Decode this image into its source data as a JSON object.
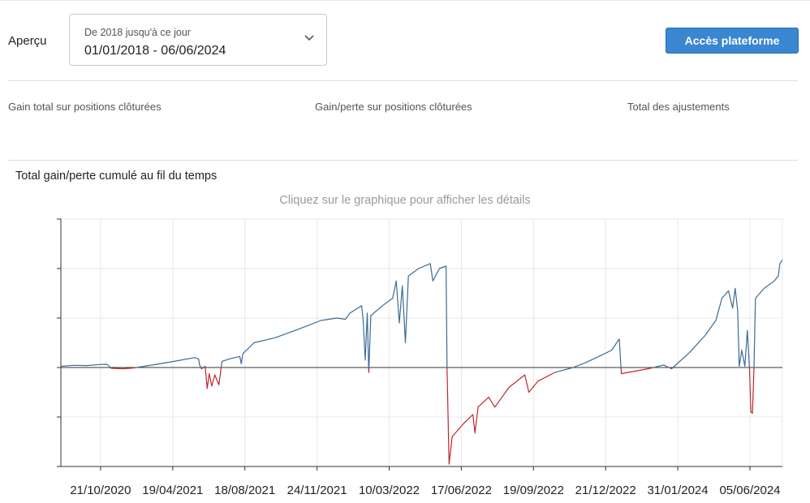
{
  "header": {
    "overview_label": "Aperçu",
    "range_caption": "De 2018 jusqu'à ce jour",
    "range_value": "01/01/2018 - 06/06/2024",
    "platform_button": "Accès plateforme",
    "accent_color": "#3b86d0"
  },
  "kpis": [
    {
      "label": "Gain total sur positions clôturées"
    },
    {
      "label": "Gain/perte sur positions clôturées"
    },
    {
      "label": "Total des ajustements"
    }
  ],
  "chart": {
    "title": "Total gain/perte cumulé au fil du temps",
    "hint": "Cliquez sur le graphique pour afficher les détails"
  },
  "chart_data": {
    "type": "line",
    "x_axis": "date",
    "xlim": [
      "2020-07-21",
      "2024-06-10"
    ],
    "ylim": [
      -4,
      6
    ],
    "y_zero": 0,
    "positive_color": "#3a6b97",
    "negative_color": "#c0262b",
    "grid": true,
    "x_tick_labels": [
      "21/10/2020",
      "19/04/2021",
      "18/08/2021",
      "24/11/2021",
      "10/03/2022",
      "17/06/2022",
      "19/09/2022",
      "21/12/2022",
      "31/01/2024",
      "05/06/2024"
    ],
    "series": [
      {
        "points": [
          [
            "2020-07-21",
            0.05
          ],
          [
            "2020-08-15",
            0.09
          ],
          [
            "2020-09-10",
            0.08
          ],
          [
            "2020-10-05",
            0.12
          ],
          [
            "2020-10-20",
            0.13
          ],
          [
            "2020-10-28",
            -0.03
          ],
          [
            "2020-11-20",
            -0.05
          ],
          [
            "2020-12-10",
            -0.02
          ],
          [
            "2021-01-01",
            0.05
          ],
          [
            "2021-02-01",
            0.15
          ],
          [
            "2021-03-01",
            0.25
          ],
          [
            "2021-04-10",
            0.4
          ],
          [
            "2021-04-18",
            0.35
          ],
          [
            "2021-04-20",
            0.1
          ],
          [
            "2021-04-24",
            -0.05
          ],
          [
            "2021-05-01",
            0.05
          ],
          [
            "2021-05-05",
            -0.85
          ],
          [
            "2021-05-09",
            -0.25
          ],
          [
            "2021-05-14",
            -0.75
          ],
          [
            "2021-05-20",
            -0.3
          ],
          [
            "2021-05-28",
            -0.7
          ],
          [
            "2021-06-03",
            0.25
          ],
          [
            "2021-06-18",
            0.35
          ],
          [
            "2021-07-08",
            0.45
          ],
          [
            "2021-07-11",
            0.15
          ],
          [
            "2021-07-14",
            0.55
          ],
          [
            "2021-08-05",
            1.0
          ],
          [
            "2021-09-15",
            1.2
          ],
          [
            "2021-11-01",
            1.55
          ],
          [
            "2021-12-15",
            1.9
          ],
          [
            "2022-01-15",
            2.0
          ],
          [
            "2022-02-01",
            1.95
          ],
          [
            "2022-02-10",
            2.2
          ],
          [
            "2022-03-05",
            2.5
          ],
          [
            "2022-03-08",
            1.9
          ],
          [
            "2022-03-12",
            0.3
          ],
          [
            "2022-03-16",
            2.2
          ],
          [
            "2022-03-19",
            -0.2
          ],
          [
            "2022-03-23",
            2.1
          ],
          [
            "2022-04-15",
            2.5
          ],
          [
            "2022-05-05",
            2.8
          ],
          [
            "2022-05-12",
            3.5
          ],
          [
            "2022-05-18",
            1.8
          ],
          [
            "2022-05-24",
            3.3
          ],
          [
            "2022-05-30",
            1.0
          ],
          [
            "2022-06-05",
            3.7
          ],
          [
            "2022-06-25",
            4.0
          ],
          [
            "2022-07-18",
            4.2
          ],
          [
            "2022-07-23",
            3.5
          ],
          [
            "2022-08-05",
            4.0
          ],
          [
            "2022-08-18",
            4.1
          ],
          [
            "2022-08-20",
            0.0
          ],
          [
            "2022-08-24",
            -3.9
          ],
          [
            "2022-08-30",
            -2.8
          ],
          [
            "2022-09-20",
            -2.3
          ],
          [
            "2022-10-10",
            -1.9
          ],
          [
            "2022-10-14",
            -2.65
          ],
          [
            "2022-10-20",
            -1.6
          ],
          [
            "2022-11-10",
            -1.2
          ],
          [
            "2022-11-22",
            -1.6
          ],
          [
            "2022-12-20",
            -0.8
          ],
          [
            "2023-01-20",
            -0.3
          ],
          [
            "2023-01-28",
            -1.0
          ],
          [
            "2023-02-15",
            -0.55
          ],
          [
            "2023-03-20",
            -0.2
          ],
          [
            "2023-04-25",
            0.0
          ],
          [
            "2023-05-20",
            0.2
          ],
          [
            "2023-06-20",
            0.5
          ],
          [
            "2023-07-10",
            0.7
          ],
          [
            "2023-07-25",
            1.15
          ],
          [
            "2023-07-29",
            -0.25
          ],
          [
            "2023-08-10",
            -0.2
          ],
          [
            "2023-09-20",
            -0.05
          ],
          [
            "2023-10-20",
            0.1
          ],
          [
            "2023-11-05",
            -0.05
          ],
          [
            "2023-12-10",
            0.6
          ],
          [
            "2024-01-10",
            1.3
          ],
          [
            "2024-01-31",
            1.9
          ],
          [
            "2024-02-12",
            2.8
          ],
          [
            "2024-02-25",
            3.1
          ],
          [
            "2024-03-04",
            2.4
          ],
          [
            "2024-03-09",
            3.2
          ],
          [
            "2024-03-14",
            2.3
          ],
          [
            "2024-03-17",
            0.05
          ],
          [
            "2024-03-22",
            0.7
          ],
          [
            "2024-03-28",
            0.05
          ],
          [
            "2024-04-02",
            1.5
          ],
          [
            "2024-04-06",
            0.05
          ],
          [
            "2024-04-09",
            -1.8
          ],
          [
            "2024-04-12",
            -1.85
          ],
          [
            "2024-04-15",
            -0.1
          ],
          [
            "2024-04-18",
            2.8
          ],
          [
            "2024-05-05",
            3.2
          ],
          [
            "2024-05-25",
            3.5
          ],
          [
            "2024-06-02",
            3.7
          ],
          [
            "2024-06-05",
            4.2
          ],
          [
            "2024-06-10",
            4.35
          ]
        ]
      }
    ]
  }
}
